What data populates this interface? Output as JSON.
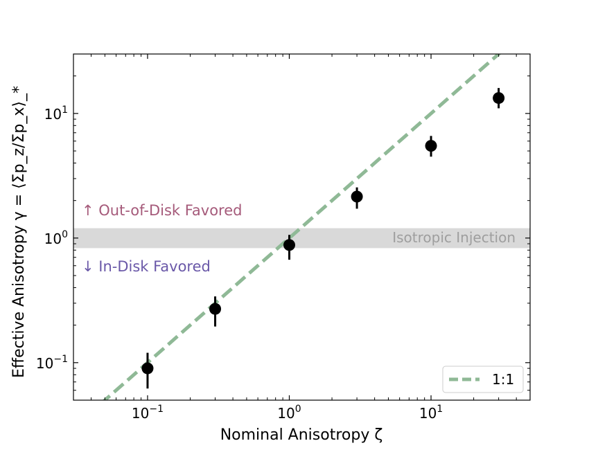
{
  "chart_data": {
    "type": "scatter",
    "xscale": "log",
    "yscale": "log",
    "xlim": [
      0.03,
      50
    ],
    "ylim": [
      0.05,
      30
    ],
    "xlabel": "Nominal Anisotropy ζ",
    "ylabel": "Effective Anisotropy γ = ⟨Σp_z/Σp_x⟩_*",
    "x_ticks": [
      {
        "value": 0.1,
        "base": "10",
        "exp": "−1"
      },
      {
        "value": 1,
        "base": "10",
        "exp": "0"
      },
      {
        "value": 10,
        "base": "10",
        "exp": "1"
      }
    ],
    "y_ticks": [
      {
        "value": 0.1,
        "base": "10",
        "exp": "−1"
      },
      {
        "value": 1,
        "base": "10",
        "exp": "0"
      },
      {
        "value": 10,
        "base": "10",
        "exp": "1"
      }
    ],
    "points": [
      {
        "x": 0.1,
        "y": 0.09,
        "y_low": 0.062,
        "y_high": 0.12
      },
      {
        "x": 0.3,
        "y": 0.27,
        "y_low": 0.195,
        "y_high": 0.34
      },
      {
        "x": 1,
        "y": 0.88,
        "y_low": 0.67,
        "y_high": 1.06
      },
      {
        "x": 3,
        "y": 2.15,
        "y_low": 1.72,
        "y_high": 2.55
      },
      {
        "x": 10,
        "y": 5.5,
        "y_low": 4.5,
        "y_high": 6.6
      },
      {
        "x": 30,
        "y": 13.3,
        "y_low": 11.0,
        "y_high": 16.0
      }
    ],
    "reference_line": {
      "label": "1:1",
      "slope": 1,
      "color": "#8fb996",
      "style": "dashed"
    },
    "band": {
      "y_low": 0.83,
      "y_high": 1.2,
      "label": "Isotropic Injection",
      "color": "#d9d9d9",
      "label_color": "#9e9e9e"
    },
    "annotations": [
      {
        "text": "↑ Out-of-Disk Favored",
        "color": "#a55a7a"
      },
      {
        "text": "↓ In-Disk Favored",
        "color": "#6a58a8"
      }
    ],
    "legend": {
      "position": "lower-right",
      "entries": [
        "1:1"
      ]
    },
    "marker_color": "#000000",
    "grid": false
  }
}
